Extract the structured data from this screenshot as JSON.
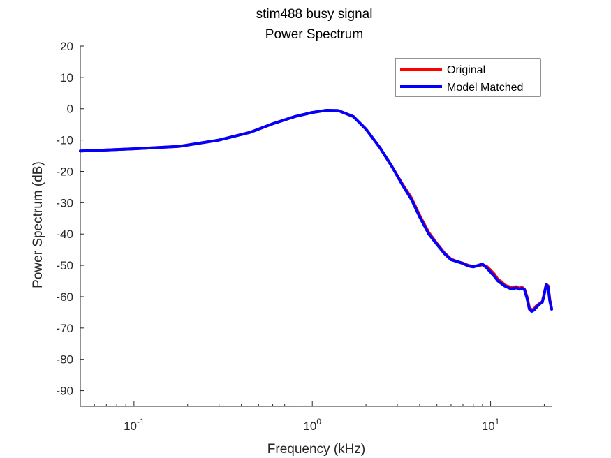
{
  "chart_data": {
    "type": "line",
    "title": "stim488 busy signal",
    "subtitle": "Power Spectrum",
    "xlabel": "Frequency (kHz)",
    "ylabel": "Power Spectrum (dB)",
    "xscale": "log",
    "xlim": [
      0.05,
      22
    ],
    "ylim": [
      -95,
      20
    ],
    "x_ticks": [
      {
        "value": 0.1,
        "base": "10",
        "exp": "-1"
      },
      {
        "value": 1,
        "base": "10",
        "exp": "0"
      },
      {
        "value": 10,
        "base": "10",
        "exp": "1"
      }
    ],
    "y_ticks": [
      20,
      10,
      0,
      -10,
      -20,
      -30,
      -40,
      -50,
      -60,
      -70,
      -80,
      -90
    ],
    "grid": false,
    "legend_position": "top-right",
    "series": [
      {
        "name": "Original",
        "color": "#ff0000",
        "x": [
          0.05,
          0.1,
          0.18,
          0.3,
          0.45,
          0.6,
          0.8,
          1.0,
          1.2,
          1.4,
          1.7,
          2.0,
          2.4,
          2.8,
          3.2,
          3.6,
          4.0,
          4.5,
          5.0,
          5.5,
          6.0,
          6.5,
          7.0,
          7.5,
          8.0,
          8.5,
          9.0,
          9.5,
          10.0,
          10.5,
          11.0,
          11.5,
          12.0,
          13.0,
          14.0,
          14.5,
          15.0,
          15.5,
          16.0,
          16.5,
          17.0,
          17.5,
          18.0,
          18.5,
          19.0,
          19.5,
          20.0,
          20.5,
          21.0,
          21.5,
          22.0
        ],
        "values": [
          -13.5,
          -12.8,
          -12.0,
          -10.0,
          -7.5,
          -4.8,
          -2.5,
          -1.2,
          -0.5,
          -0.6,
          -2.5,
          -6.5,
          -12.5,
          -18.5,
          -24.0,
          -28.5,
          -34.0,
          -39.5,
          -43.0,
          -46.0,
          -48.0,
          -48.8,
          -49.3,
          -50.0,
          -50.3,
          -50.2,
          -49.8,
          -50.3,
          -51.5,
          -52.8,
          -54.5,
          -55.2,
          -56.3,
          -57.0,
          -56.8,
          -57.3,
          -57.0,
          -57.6,
          -60.0,
          -63.5,
          -64.2,
          -64.0,
          -63.0,
          -62.5,
          -62.0,
          -61.5,
          -59.0,
          -56.0,
          -56.5,
          -61.0,
          -63.8
        ]
      },
      {
        "name": "Model Matched",
        "color": "#0000ff",
        "x": [
          0.05,
          0.1,
          0.18,
          0.3,
          0.45,
          0.6,
          0.8,
          1.0,
          1.2,
          1.4,
          1.7,
          2.0,
          2.4,
          2.8,
          3.2,
          3.6,
          4.0,
          4.5,
          5.0,
          5.5,
          6.0,
          6.5,
          7.0,
          7.5,
          8.0,
          8.5,
          9.0,
          9.5,
          10.0,
          10.5,
          11.0,
          11.5,
          12.0,
          13.0,
          14.0,
          14.5,
          15.0,
          15.5,
          16.0,
          16.5,
          17.0,
          17.5,
          18.0,
          18.5,
          19.0,
          19.5,
          20.0,
          20.5,
          21.0,
          21.5,
          22.0
        ],
        "values": [
          -13.5,
          -12.8,
          -12.0,
          -10.0,
          -7.5,
          -4.8,
          -2.5,
          -1.2,
          -0.5,
          -0.6,
          -2.5,
          -6.5,
          -12.5,
          -18.5,
          -24.3,
          -29.0,
          -34.5,
          -40.0,
          -43.3,
          -46.2,
          -48.2,
          -48.8,
          -49.4,
          -50.2,
          -50.5,
          -50.0,
          -49.6,
          -50.8,
          -52.2,
          -53.5,
          -55.0,
          -55.8,
          -56.6,
          -57.5,
          -57.2,
          -57.6,
          -57.3,
          -57.8,
          -60.5,
          -64.0,
          -64.7,
          -64.3,
          -63.5,
          -62.8,
          -62.2,
          -61.8,
          -59.2,
          -56.2,
          -56.8,
          -61.5,
          -64.0
        ]
      }
    ]
  }
}
